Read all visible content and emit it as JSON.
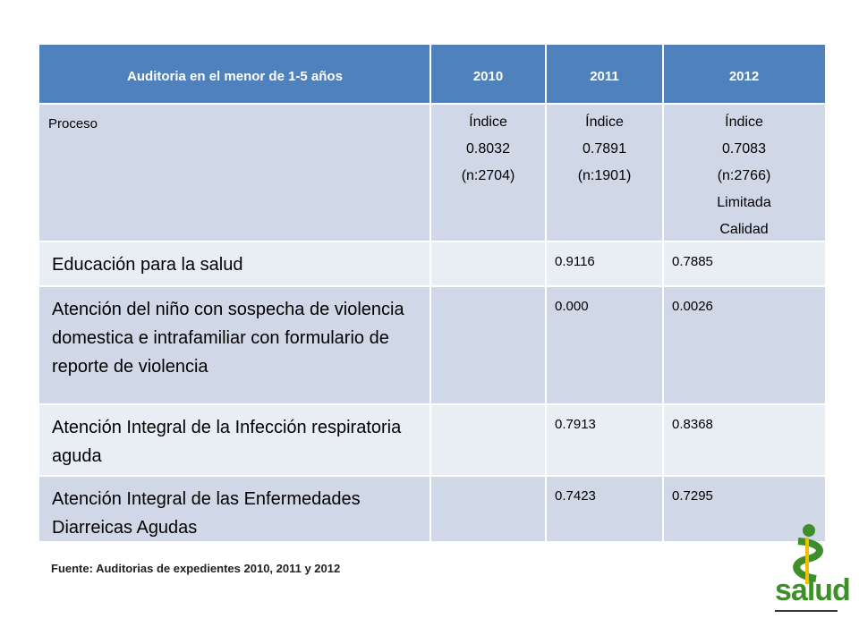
{
  "table": {
    "header": [
      "Auditoria en el menor de  1-5 años",
      "2010",
      "2011",
      "2012"
    ],
    "rows": [
      {
        "label": "Proceso",
        "cells": [
          "Índice\n0.8032\n(n:2704)",
          "Índice\n0.7891\n(n:1901)",
          "Índice\n0.7083\n(n:2766)\nLimitada\nCalidad"
        ]
      },
      {
        "label": "Educación para la salud",
        "value_2011": "0.9116",
        "value_2012": "0.7885"
      },
      {
        "label": "Atención del niño con sospecha de violencia domestica e intrafamiliar con formulario de reporte de violencia",
        "value_2011": "0.000",
        "value_2012": "0.0026"
      },
      {
        "label": "Atención Integral de la Infección respiratoria aguda",
        "value_2011": "0.7913",
        "value_2012": "0.8368"
      },
      {
        "label": "Atención Integral de las Enfermedades Diarreicas Agudas",
        "value_2011": "0.7423",
        "value_2012": "0.7295"
      }
    ]
  },
  "footnote": "Fuente: Auditorias de expedientes 2010, 2011 y 2012",
  "logo": "salud"
}
